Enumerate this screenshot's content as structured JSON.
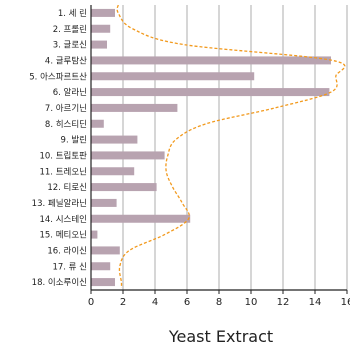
{
  "chart_data": {
    "type": "bar",
    "orientation": "horizontal",
    "xlabel": "Yeast Extract",
    "xlim": [
      0,
      16
    ],
    "xticks": [
      0,
      2,
      4,
      6,
      8,
      10,
      12,
      14,
      16
    ],
    "grid": "vertical",
    "bar_color": "#b8a3b0",
    "curve_color": "#f29a1e",
    "categories": [
      "1. 세 린",
      "2. 프롤린",
      "3. 글로신",
      "4. 글루탐산",
      "5. 아스파르트산",
      "6. 알라닌",
      "7. 아르기닌",
      "8. 히스티딘",
      "9. 발린",
      "10. 트립토판",
      "11. 트레오닌",
      "12. 티로신",
      "13. 페닐알라닌",
      "14. 시스테인",
      "15. 메티오닌",
      "16. 라이신",
      "17. 류 신",
      "18. 이소루이신"
    ],
    "values": [
      1.5,
      1.2,
      1.0,
      15.0,
      10.2,
      14.9,
      5.4,
      0.8,
      2.9,
      4.6,
      2.7,
      4.1,
      1.6,
      6.2,
      0.4,
      1.8,
      1.2,
      1.5
    ],
    "curve": [
      1.7,
      2.6,
      5.8,
      15.1,
      15.3,
      15.0,
      11.5,
      7.2,
      5.3,
      4.8,
      4.7,
      5.1,
      5.7,
      6.1,
      4.6,
      2.4,
      1.8,
      1.9
    ]
  }
}
